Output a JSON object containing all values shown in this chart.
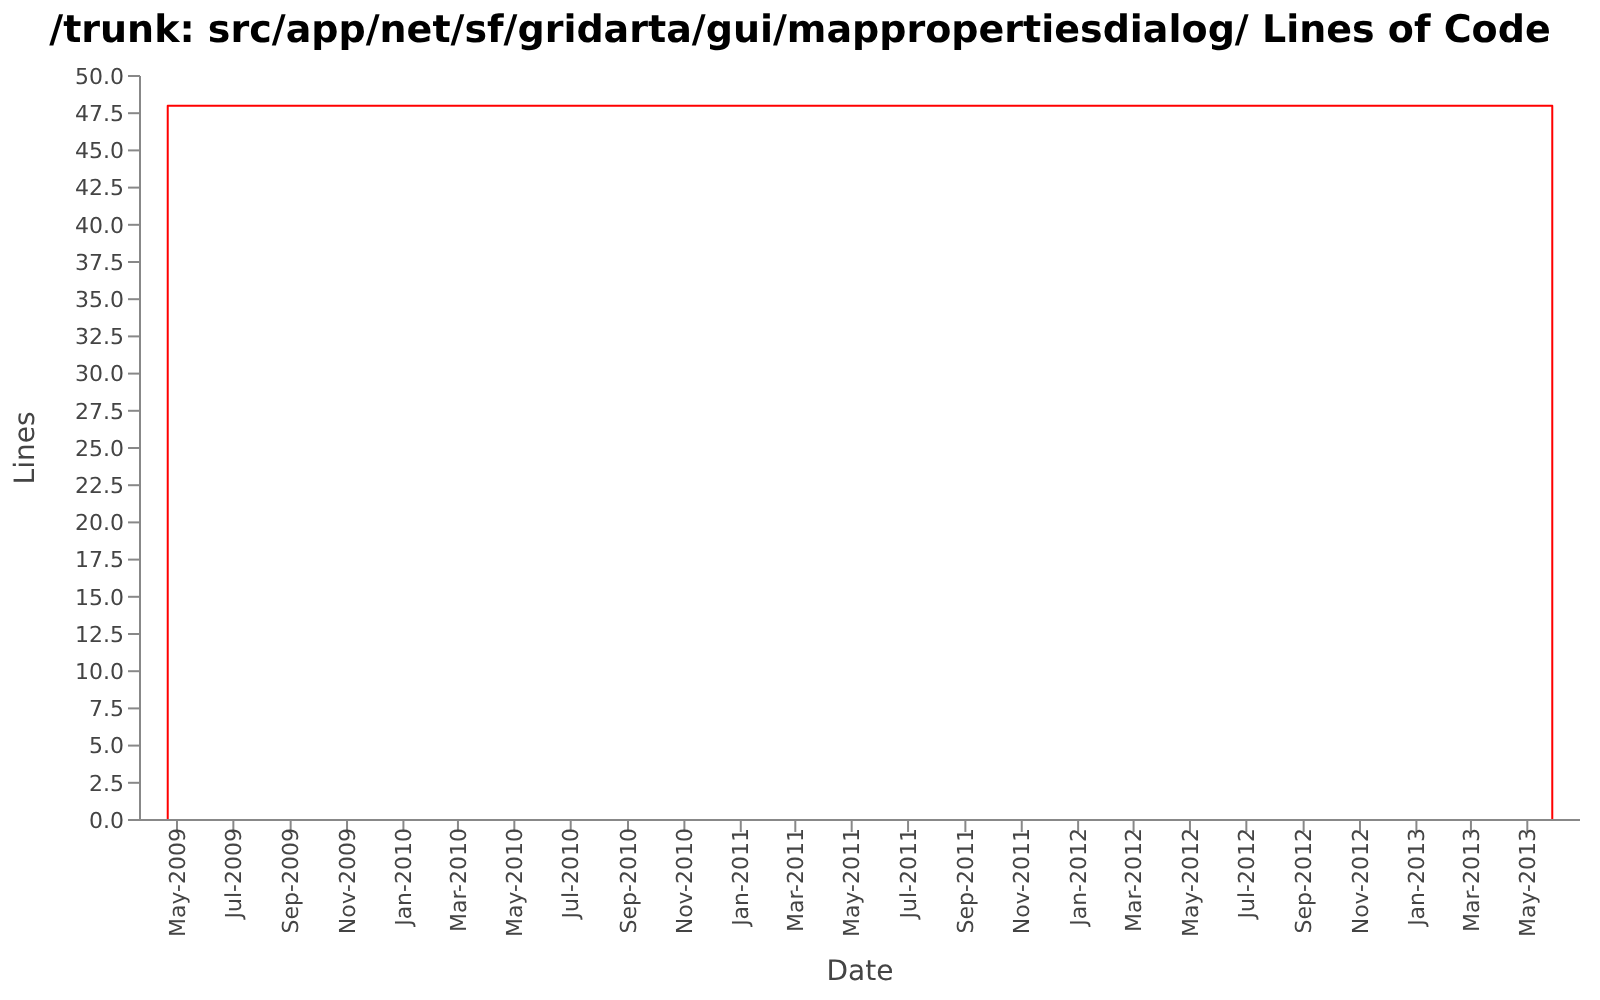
{
  "chart_data": {
    "type": "line",
    "title": "/trunk: src/app/net/sf/gridarta/gui/mappropertiesdialog/ Lines of Code",
    "xlabel": "Date",
    "ylabel": "Lines",
    "x": [
      "2009-04-21",
      "2009-04-21",
      "2013-05-28",
      "2013-05-28"
    ],
    "series": [
      {
        "color": "#ff0000",
        "values": [
          0,
          48,
          48,
          0
        ]
      }
    ],
    "xlim": [
      "2009-03-22",
      "2013-06-27"
    ],
    "xticks": [
      {
        "value": "2009-05",
        "label": "May-2009"
      },
      {
        "value": "2009-07",
        "label": "Jul-2009"
      },
      {
        "value": "2009-09",
        "label": "Sep-2009"
      },
      {
        "value": "2009-11",
        "label": "Nov-2009"
      },
      {
        "value": "2010-01",
        "label": "Jan-2010"
      },
      {
        "value": "2010-03",
        "label": "Mar-2010"
      },
      {
        "value": "2010-05",
        "label": "May-2010"
      },
      {
        "value": "2010-07",
        "label": "Jul-2010"
      },
      {
        "value": "2010-09",
        "label": "Sep-2010"
      },
      {
        "value": "2010-11",
        "label": "Nov-2010"
      },
      {
        "value": "2011-01",
        "label": "Jan-2011"
      },
      {
        "value": "2011-03",
        "label": "Mar-2011"
      },
      {
        "value": "2011-05",
        "label": "May-2011"
      },
      {
        "value": "2011-07",
        "label": "Jul-2011"
      },
      {
        "value": "2011-09",
        "label": "Sep-2011"
      },
      {
        "value": "2011-11",
        "label": "Nov-2011"
      },
      {
        "value": "2012-01",
        "label": "Jan-2012"
      },
      {
        "value": "2012-03",
        "label": "Mar-2012"
      },
      {
        "value": "2012-05",
        "label": "May-2012"
      },
      {
        "value": "2012-07",
        "label": "Jul-2012"
      },
      {
        "value": "2012-09",
        "label": "Sep-2012"
      },
      {
        "value": "2012-11",
        "label": "Nov-2012"
      },
      {
        "value": "2013-01",
        "label": "Jan-2013"
      },
      {
        "value": "2013-03",
        "label": "Mar-2013"
      },
      {
        "value": "2013-05",
        "label": "May-2013"
      }
    ],
    "ylim": [
      0,
      50
    ],
    "yticks": [
      {
        "value": 0,
        "label": "0.0"
      },
      {
        "value": 2.5,
        "label": "2.5"
      },
      {
        "value": 5,
        "label": "5.0"
      },
      {
        "value": 7.5,
        "label": "7.5"
      },
      {
        "value": 10,
        "label": "10.0"
      },
      {
        "value": 12.5,
        "label": "12.5"
      },
      {
        "value": 15,
        "label": "15.0"
      },
      {
        "value": 17.5,
        "label": "17.5"
      },
      {
        "value": 20,
        "label": "20.0"
      },
      {
        "value": 22.5,
        "label": "22.5"
      },
      {
        "value": 25,
        "label": "25.0"
      },
      {
        "value": 27.5,
        "label": "27.5"
      },
      {
        "value": 30,
        "label": "30.0"
      },
      {
        "value": 32.5,
        "label": "32.5"
      },
      {
        "value": 35,
        "label": "35.0"
      },
      {
        "value": 37.5,
        "label": "37.5"
      },
      {
        "value": 40,
        "label": "40.0"
      },
      {
        "value": 42.5,
        "label": "42.5"
      },
      {
        "value": 45,
        "label": "45.0"
      },
      {
        "value": 47.5,
        "label": "47.5"
      },
      {
        "value": 50,
        "label": "50.0"
      }
    ],
    "marker": "none"
  }
}
